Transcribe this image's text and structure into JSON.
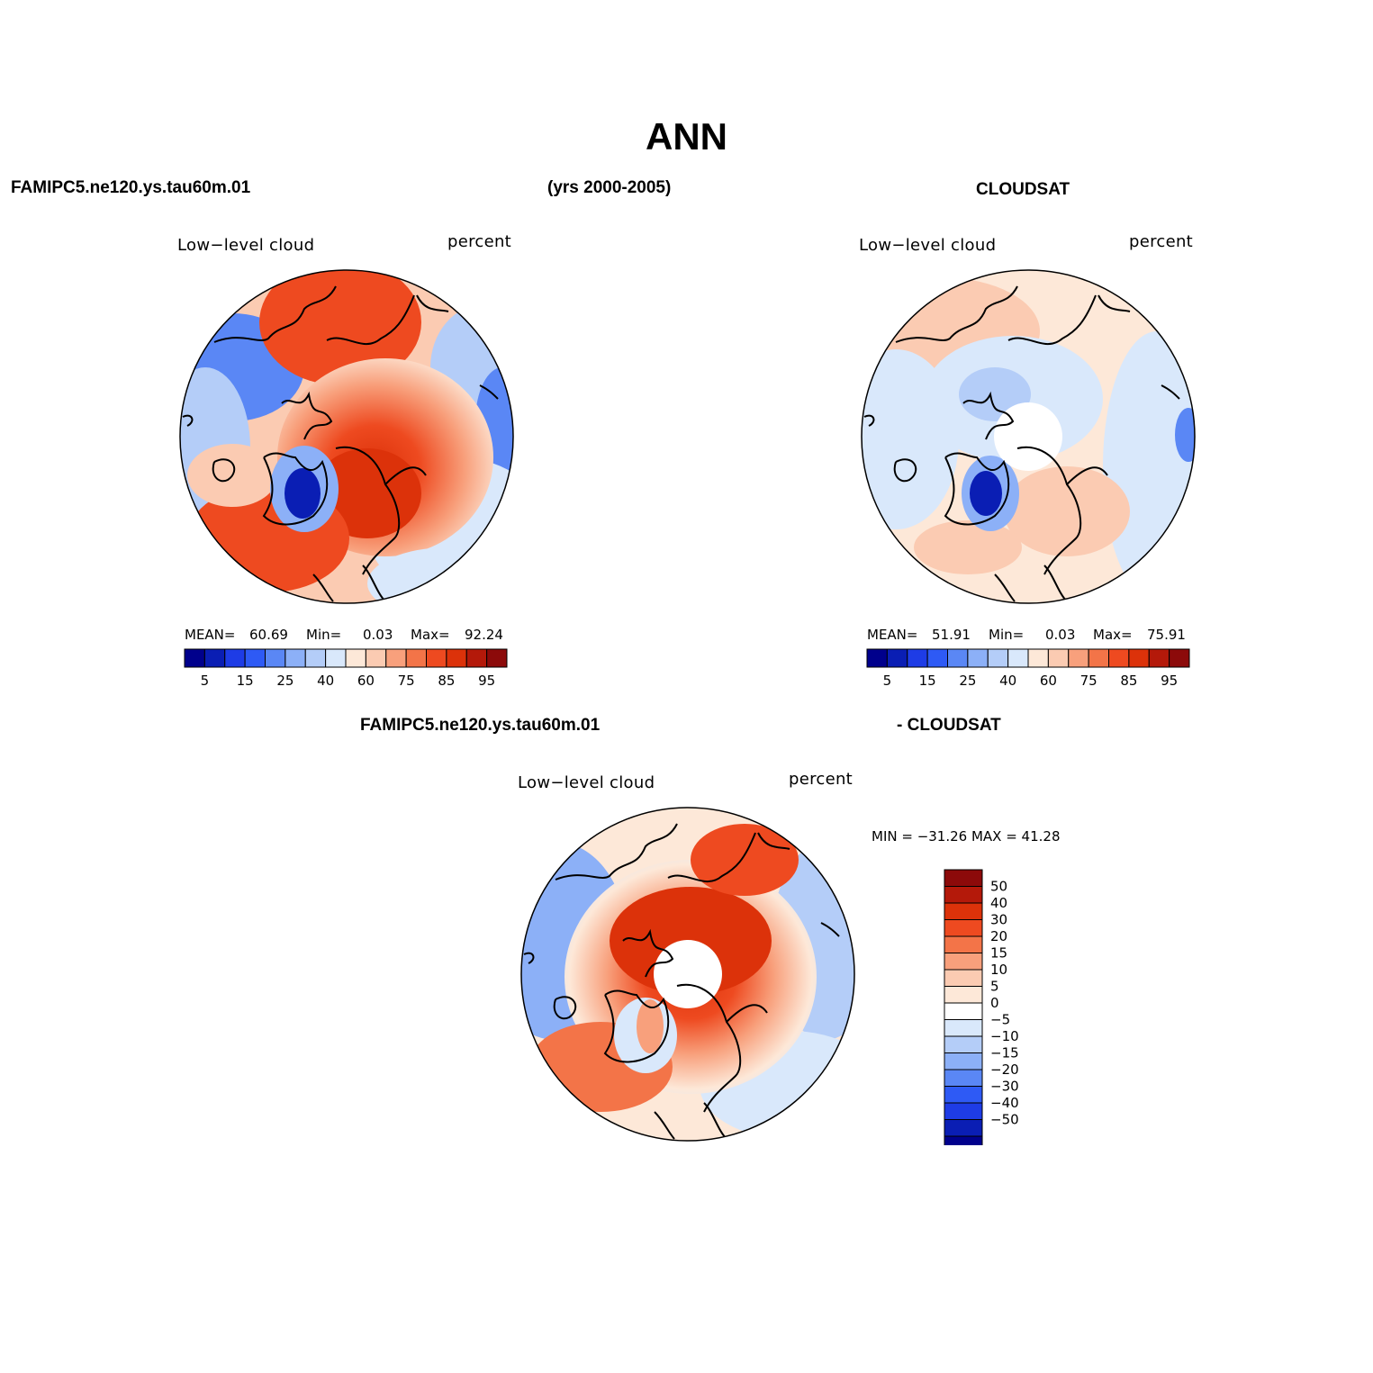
{
  "title": "ANN",
  "header": {
    "left_case": "FAMIPC5.ne120.ys.tau60m.01",
    "years": "(yrs 2000-2005)",
    "right_case": "CLOUDSAT",
    "diff_left": "FAMIPC5.ne120.ys.tau60m.01",
    "diff_right": "- CLOUDSAT"
  },
  "panels": {
    "model": {
      "variable": "Low−level cloud",
      "units": "percent",
      "mean_label": "MEAN=",
      "mean": "60.69",
      "min_label": "Min=",
      "min": "0.03",
      "max_label": "Max=",
      "max": "92.24"
    },
    "obs": {
      "variable": "Low−level cloud",
      "units": "percent",
      "mean_label": "MEAN=",
      "mean": "51.91",
      "min_label": "Min=",
      "min": "0.03",
      "max_label": "Max=",
      "max": "75.91"
    },
    "diff": {
      "variable": "Low−level cloud",
      "units": "percent",
      "minmax": "MIN = −31.26 MAX =   41.28"
    }
  },
  "colorbar_main": {
    "labels": [
      "5",
      "15",
      "25",
      "40",
      "60",
      "75",
      "85",
      "95"
    ],
    "colors": [
      "#00008c",
      "#0a1eb4",
      "#1e3ce6",
      "#2e5af5",
      "#5a87f5",
      "#8cb0f7",
      "#b4cdf8",
      "#d9e8fb",
      "#fde8d8",
      "#fbcbb2",
      "#f8a07c",
      "#f37448",
      "#ee4a20",
      "#dc320a",
      "#b4190a",
      "#8c0a0a"
    ]
  },
  "colorbar_diff": {
    "labels": [
      "50",
      "40",
      "30",
      "20",
      "15",
      "10",
      "5",
      "0",
      "−5",
      "−10",
      "−15",
      "−20",
      "−30",
      "−40",
      "−50"
    ],
    "colors": [
      "#8c0a0a",
      "#b4190a",
      "#dc320a",
      "#ee4a20",
      "#f37448",
      "#f8a07c",
      "#fbcbb2",
      "#fde8d8",
      "#ffffff",
      "#d9e8fb",
      "#b4cdf8",
      "#8cb0f7",
      "#5a87f5",
      "#2e5af5",
      "#1e3ce6",
      "#0a1eb4",
      "#00008c"
    ]
  }
}
